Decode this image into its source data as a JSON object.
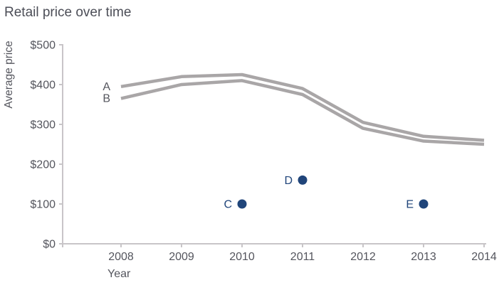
{
  "title": "Retail price over time",
  "chart_data": {
    "type": "line",
    "title": "Retail price over time",
    "xlabel": "Year",
    "ylabel": "Average price",
    "x": [
      2008,
      2009,
      2010,
      2011,
      2012,
      2013,
      2014
    ],
    "ylim": [
      0,
      500
    ],
    "grid": false,
    "yticks": [
      {
        "label": "$0",
        "value": 0
      },
      {
        "label": "$100",
        "value": 100
      },
      {
        "label": "$200",
        "value": 200
      },
      {
        "label": "$300",
        "value": 300
      },
      {
        "label": "$400",
        "value": 400
      },
      {
        "label": "$500",
        "value": 500
      }
    ],
    "series": [
      {
        "name": "A",
        "values": [
          395,
          420,
          425,
          390,
          305,
          270,
          260
        ]
      },
      {
        "name": "B",
        "values": [
          365,
          400,
          410,
          375,
          290,
          258,
          250
        ]
      }
    ],
    "points": [
      {
        "name": "C",
        "x": 2010,
        "y": 100
      },
      {
        "name": "D",
        "x": 2011,
        "y": 160
      },
      {
        "name": "E",
        "x": 2013,
        "y": 100
      }
    ],
    "legend_position": "labels-left-of-line-start",
    "colors": {
      "line": "#a9a6a7",
      "point": "#20457a",
      "axis": "#c8c5c8",
      "text": "#54555d",
      "title": "#4c4e57"
    }
  }
}
